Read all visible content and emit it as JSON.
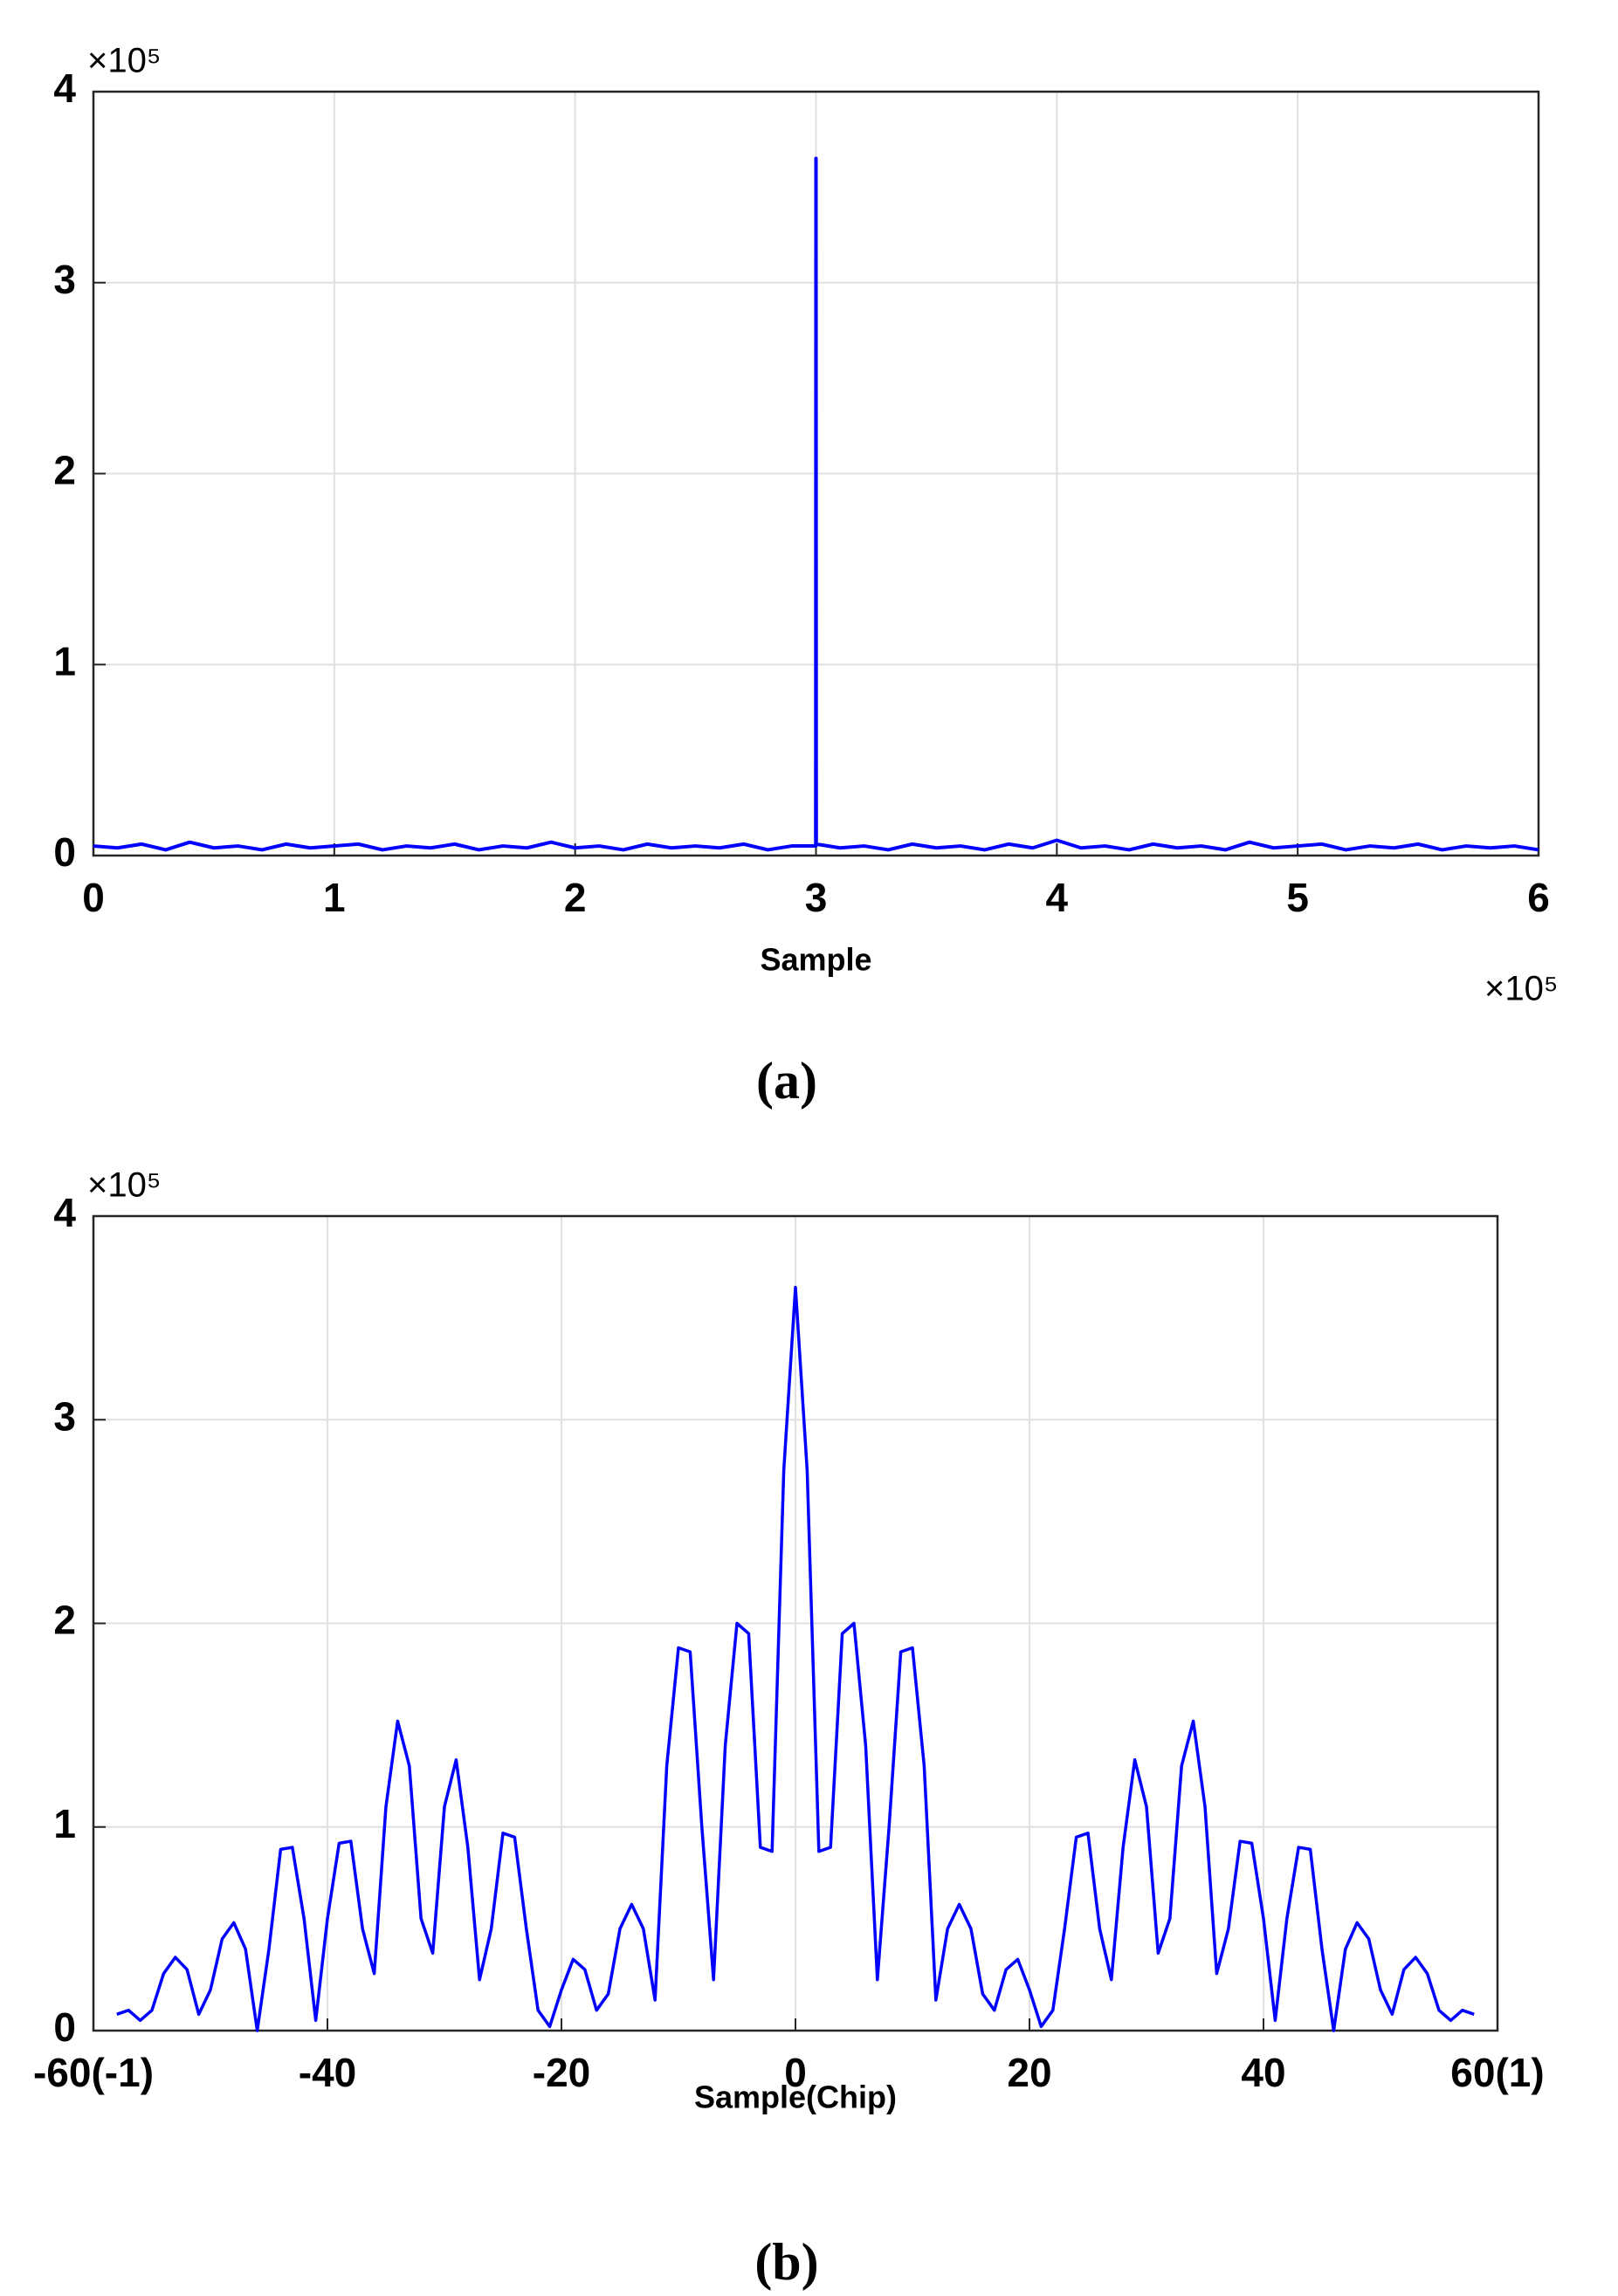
{
  "chart_data": [
    {
      "type": "line",
      "color": "#0000ff",
      "grid": true,
      "x_label": "Sample",
      "y_multiplier": "×10⁵",
      "x_multiplier": "×10⁵",
      "caption": "(a)",
      "xlim": [
        0,
        6
      ],
      "xticks": [
        0,
        1,
        2,
        3,
        4,
        5,
        6
      ],
      "ylim": [
        0,
        4
      ],
      "yticks": [
        0,
        1,
        2,
        3,
        4
      ],
      "x": [
        0,
        0.1,
        0.2,
        0.3,
        0.4,
        0.5,
        0.6,
        0.7,
        0.8,
        0.9,
        1,
        1.1,
        1.2,
        1.3,
        1.4,
        1.5,
        1.6,
        1.7,
        1.8,
        1.9,
        2,
        2.1,
        2.2,
        2.3,
        2.4,
        2.5,
        2.6,
        2.7,
        2.8,
        2.9,
        2.999,
        3,
        3.001,
        3.1,
        3.2,
        3.3,
        3.4,
        3.5,
        3.6,
        3.7,
        3.8,
        3.9,
        4,
        4.1,
        4.2,
        4.3,
        4.4,
        4.5,
        4.6,
        4.7,
        4.8,
        4.9,
        5,
        5.1,
        5.2,
        5.3,
        5.4,
        5.5,
        5.6,
        5.7,
        5.8,
        5.9,
        6
      ],
      "values": [
        0.05,
        0.04,
        0.06,
        0.03,
        0.07,
        0.04,
        0.05,
        0.03,
        0.06,
        0.04,
        0.05,
        0.06,
        0.03,
        0.05,
        0.04,
        0.06,
        0.03,
        0.05,
        0.04,
        0.07,
        0.04,
        0.05,
        0.03,
        0.06,
        0.04,
        0.05,
        0.04,
        0.06,
        0.03,
        0.05,
        0.05,
        3.65,
        0.06,
        0.04,
        0.05,
        0.03,
        0.06,
        0.04,
        0.05,
        0.03,
        0.06,
        0.04,
        0.08,
        0.04,
        0.05,
        0.03,
        0.06,
        0.04,
        0.05,
        0.03,
        0.07,
        0.04,
        0.05,
        0.06,
        0.03,
        0.05,
        0.04,
        0.06,
        0.03,
        0.05,
        0.04,
        0.05,
        0.03
      ]
    },
    {
      "type": "line",
      "color": "#0000ff",
      "grid": true,
      "x_label": "Sample(Chip)",
      "y_multiplier": "×10⁵",
      "caption": "(b)",
      "xlim": [
        -60,
        60
      ],
      "xticks": [
        {
          "value": -60,
          "label": "-60(-1)"
        },
        -40,
        -20,
        0,
        20,
        40,
        {
          "value": 60,
          "label": "60(1)"
        }
      ],
      "ylim": [
        0,
        4
      ],
      "yticks": [
        0,
        1,
        2,
        3,
        4
      ],
      "x": [
        -58,
        -57,
        -56,
        -55,
        -54,
        -53,
        -52,
        -51,
        -50,
        -49,
        -48,
        -47,
        -46,
        -45,
        -44,
        -43,
        -42,
        -41,
        -40,
        -39,
        -38,
        -37,
        -36,
        -35,
        -34,
        -33,
        -32,
        -31,
        -30,
        -29,
        -28,
        -27,
        -26,
        -25,
        -24,
        -23,
        -22,
        -21,
        -20,
        -19,
        -18,
        -17,
        -16,
        -15,
        -14,
        -13,
        -12,
        -11,
        -10,
        -9,
        -8,
        -7,
        -6,
        -5,
        -4,
        -3,
        -2,
        -1,
        0,
        1,
        2,
        3,
        4,
        5,
        6,
        7,
        8,
        9,
        10,
        11,
        12,
        13,
        14,
        15,
        16,
        17,
        18,
        19,
        20,
        21,
        22,
        23,
        24,
        25,
        26,
        27,
        28,
        29,
        30,
        31,
        32,
        33,
        34,
        35,
        36,
        37,
        38,
        39,
        40,
        41,
        42,
        43,
        44,
        45,
        46,
        47,
        48,
        49,
        50,
        51,
        52,
        53,
        54,
        55,
        56,
        57,
        58
      ],
      "values": [
        0.08,
        0.1,
        0.05,
        0.1,
        0.28,
        0.36,
        0.3,
        0.08,
        0.2,
        0.45,
        0.53,
        0.4,
        0.0,
        0.4,
        0.89,
        0.9,
        0.55,
        0.05,
        0.55,
        0.92,
        0.93,
        0.5,
        0.28,
        1.1,
        1.52,
        1.3,
        0.55,
        0.38,
        1.1,
        1.33,
        0.9,
        0.25,
        0.5,
        0.97,
        0.95,
        0.5,
        0.1,
        0.02,
        0.2,
        0.35,
        0.3,
        0.1,
        0.18,
        0.5,
        0.62,
        0.5,
        0.15,
        1.3,
        1.88,
        1.86,
        1.0,
        0.25,
        1.4,
        2.0,
        1.95,
        0.9,
        0.88,
        2.75,
        3.65,
        2.75,
        0.88,
        0.9,
        1.95,
        2.0,
        1.4,
        0.25,
        1.0,
        1.86,
        1.88,
        1.3,
        0.15,
        0.5,
        0.62,
        0.5,
        0.18,
        0.1,
        0.3,
        0.35,
        0.2,
        0.02,
        0.1,
        0.5,
        0.95,
        0.97,
        0.5,
        0.25,
        0.9,
        1.33,
        1.1,
        0.38,
        0.55,
        1.3,
        1.52,
        1.1,
        0.28,
        0.5,
        0.93,
        0.92,
        0.55,
        0.05,
        0.55,
        0.9,
        0.89,
        0.4,
        0.0,
        0.4,
        0.53,
        0.45,
        0.2,
        0.08,
        0.3,
        0.36,
        0.28,
        0.1,
        0.05,
        0.1,
        0.08
      ]
    }
  ]
}
